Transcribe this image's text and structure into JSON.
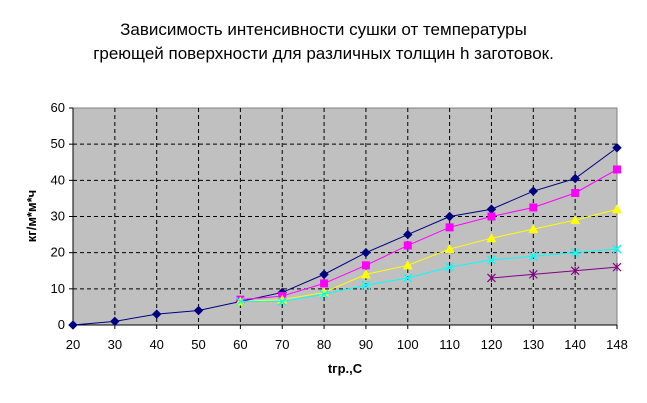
{
  "chart_data": {
    "type": "line",
    "title": "Зависимость интенсивности сушки от температуры\nгреющей поверхности для различных толщин h заготовок.",
    "xlabel": "tгр.,C",
    "ylabel": "кг/м*м*ч",
    "categories": [
      "20",
      "30",
      "40",
      "50",
      "60",
      "70",
      "80",
      "90",
      "100",
      "110",
      "120",
      "130",
      "140",
      "148"
    ],
    "ylim": [
      0,
      60
    ],
    "yticks": [
      "0",
      "10",
      "20",
      "30",
      "40",
      "50",
      "60"
    ],
    "grid": true,
    "legend": "none",
    "series": [
      {
        "color": "#000080",
        "marker": "diamond",
        "values": [
          0,
          1,
          3,
          4,
          6.5,
          9,
          14,
          20,
          25,
          30,
          32,
          37,
          40.5,
          49
        ]
      },
      {
        "color": "#ff00ff",
        "marker": "square",
        "values": [
          null,
          null,
          null,
          null,
          7,
          8,
          11.5,
          16.5,
          22,
          27,
          30,
          32.5,
          36.5,
          43
        ]
      },
      {
        "color": "#ffff00",
        "marker": "triangle",
        "values": [
          null,
          null,
          null,
          null,
          6.5,
          7,
          9,
          14,
          16.5,
          21,
          24,
          26.5,
          29,
          32
        ]
      },
      {
        "color": "#00ffff",
        "marker": "x",
        "values": [
          null,
          null,
          null,
          null,
          6.5,
          6.5,
          8.5,
          11,
          13,
          16,
          18,
          19,
          20,
          21
        ]
      },
      {
        "color": "#800080",
        "marker": "star",
        "values": [
          null,
          null,
          null,
          null,
          null,
          null,
          null,
          null,
          null,
          null,
          13,
          14,
          15,
          16
        ]
      }
    ]
  }
}
